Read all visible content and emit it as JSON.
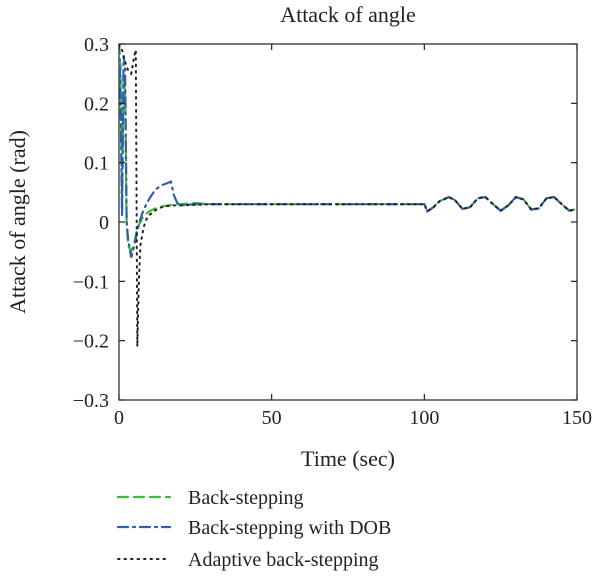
{
  "chart_data": {
    "type": "line",
    "title": "Attack of angle",
    "xlabel": "Time (sec)",
    "ylabel": "Attack of angle (rad)",
    "xlim": [
      0,
      150
    ],
    "ylim": [
      -0.3,
      0.3
    ],
    "x_ticks": [
      0,
      50,
      100,
      150
    ],
    "x_tick_labels": [
      "0",
      "50",
      "100",
      "150"
    ],
    "y_ticks": [
      0.3,
      0.2,
      0.1,
      0,
      -0.1,
      -0.2,
      -0.3
    ],
    "y_tick_labels": [
      "0.3",
      "0.2",
      "0.1",
      "0",
      "−0.1",
      "−0.2",
      "−0.3"
    ],
    "grid": false,
    "legend_position": "bottom-outside",
    "series": [
      {
        "name": "Back-stepping",
        "color": "#3cb93c",
        "dash": "dashed",
        "x": [
          0,
          0.5,
          1.0,
          1.5,
          2.0,
          2.5,
          3.0,
          4.0,
          5.0,
          6.0,
          7.0,
          8.0,
          10.0,
          12.0,
          15.0,
          18.0,
          20.0,
          25.0,
          30.0,
          40.0,
          50.0,
          60.0,
          70.0,
          80.0,
          90.0,
          100.0,
          101.0,
          103.0,
          105.0,
          108.0,
          110.0,
          112.5,
          115.0,
          117.5,
          120.0,
          122.5,
          125.0,
          127.5,
          130.0,
          132.5,
          135.0,
          137.5,
          140.0,
          142.5,
          145.0,
          147.5,
          150.0
        ],
        "y": [
          0.3,
          0.26,
          0.02,
          0.24,
          0.22,
          0.0,
          -0.04,
          -0.05,
          -0.035,
          -0.01,
          0.0,
          0.01,
          0.018,
          0.023,
          0.027,
          0.029,
          0.03,
          0.032,
          0.03,
          0.03,
          0.03,
          0.03,
          0.03,
          0.03,
          0.03,
          0.03,
          0.018,
          0.025,
          0.035,
          0.042,
          0.037,
          0.022,
          0.025,
          0.04,
          0.042,
          0.03,
          0.019,
          0.028,
          0.042,
          0.038,
          0.021,
          0.023,
          0.04,
          0.042,
          0.03,
          0.019,
          0.022
        ]
      },
      {
        "name": "Back-stepping with DOB",
        "color": "#2e5fae",
        "dash": "dashdot",
        "x": [
          0,
          0.5,
          1.0,
          1.5,
          2.0,
          2.5,
          3.0,
          4.0,
          5.0,
          6.0,
          7.0,
          8.0,
          10.0,
          12.0,
          14.0,
          16.0,
          17.0,
          18.0,
          19.0,
          20.0,
          22.0,
          25.0,
          30.0,
          40.0,
          50.0,
          60.0,
          70.0,
          80.0,
          90.0,
          100.0,
          101.0,
          103.0,
          105.0,
          108.0,
          110.0,
          112.5,
          115.0,
          117.5,
          120.0,
          122.5,
          125.0,
          127.5,
          130.0,
          132.5,
          135.0,
          137.5,
          140.0,
          142.5,
          145.0,
          147.5,
          150.0
        ],
        "y": [
          0.3,
          0.22,
          0.01,
          0.28,
          0.26,
          0.0,
          -0.03,
          -0.06,
          -0.04,
          -0.015,
          0.005,
          0.02,
          0.04,
          0.055,
          0.062,
          0.066,
          0.068,
          0.045,
          0.033,
          0.028,
          0.029,
          0.03,
          0.03,
          0.03,
          0.03,
          0.03,
          0.03,
          0.03,
          0.03,
          0.03,
          0.018,
          0.025,
          0.035,
          0.042,
          0.037,
          0.022,
          0.025,
          0.04,
          0.042,
          0.03,
          0.019,
          0.028,
          0.042,
          0.038,
          0.021,
          0.023,
          0.04,
          0.042,
          0.03,
          0.019,
          0.022
        ]
      },
      {
        "name": "Adaptive back-stepping",
        "color": "#222222",
        "dash": "dotted",
        "x": [
          0,
          1.0,
          2.0,
          3.0,
          4.0,
          5.0,
          5.5,
          6.0,
          6.5,
          7.0,
          8.0,
          9.0,
          10.0,
          12.0,
          14.0,
          16.0,
          18.0,
          20.0,
          25.0,
          30.0,
          40.0,
          50.0,
          60.0,
          70.0,
          80.0,
          90.0,
          100.0,
          101.0,
          103.0,
          105.0,
          108.0,
          110.0,
          112.5,
          115.0,
          117.5,
          120.0,
          122.5,
          125.0,
          127.5,
          130.0,
          132.5,
          135.0,
          137.5,
          140.0,
          142.5,
          145.0,
          147.5,
          150.0
        ],
        "y": [
          0.3,
          0.29,
          0.27,
          0.255,
          0.25,
          0.28,
          0.29,
          -0.21,
          -0.1,
          -0.04,
          -0.01,
          0.005,
          0.012,
          0.02,
          0.025,
          0.027,
          0.028,
          0.028,
          0.029,
          0.03,
          0.03,
          0.03,
          0.03,
          0.03,
          0.03,
          0.03,
          0.03,
          0.018,
          0.025,
          0.035,
          0.042,
          0.037,
          0.022,
          0.025,
          0.04,
          0.042,
          0.03,
          0.019,
          0.028,
          0.042,
          0.038,
          0.021,
          0.023,
          0.04,
          0.042,
          0.03,
          0.019,
          0.022
        ]
      }
    ]
  }
}
